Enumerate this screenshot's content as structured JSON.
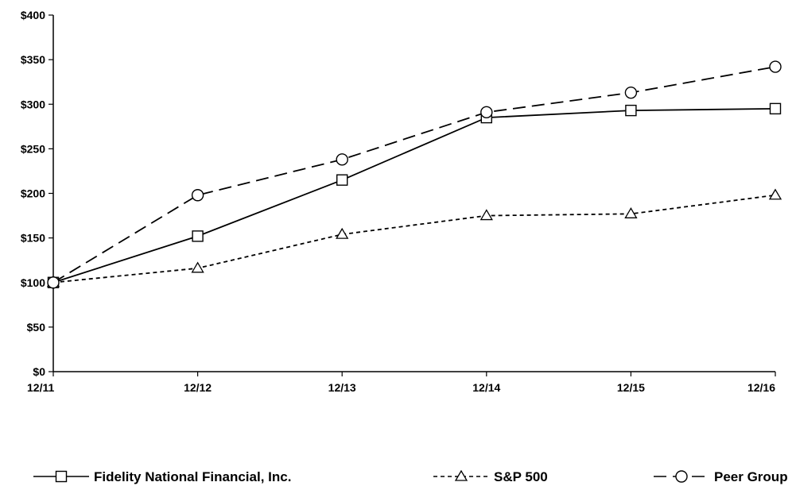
{
  "chart_data": {
    "type": "line",
    "title": "",
    "xlabel": "",
    "ylabel": "",
    "categories": [
      "12/11",
      "12/12",
      "12/13",
      "12/14",
      "12/15",
      "12/16"
    ],
    "y_ticks": [
      "$0",
      "$50",
      "$100",
      "$150",
      "$200",
      "$250",
      "$300",
      "$350",
      "$400"
    ],
    "ylim": [
      0,
      400
    ],
    "grid": false,
    "legend_position": "bottom",
    "series": [
      {
        "name": "Fidelity National Financial, Inc.",
        "values": [
          100,
          152,
          215,
          285,
          293,
          295
        ],
        "marker": "square",
        "line_style": "solid",
        "color": "#000000"
      },
      {
        "name": "S&P 500",
        "values": [
          100,
          116,
          154,
          175,
          177,
          198
        ],
        "marker": "triangle",
        "line_style": "dotted",
        "color": "#000000"
      },
      {
        "name": "Peer Group",
        "values": [
          100,
          198,
          238,
          291,
          313,
          342
        ],
        "marker": "circle",
        "line_style": "dashed",
        "color": "#000000"
      }
    ]
  }
}
